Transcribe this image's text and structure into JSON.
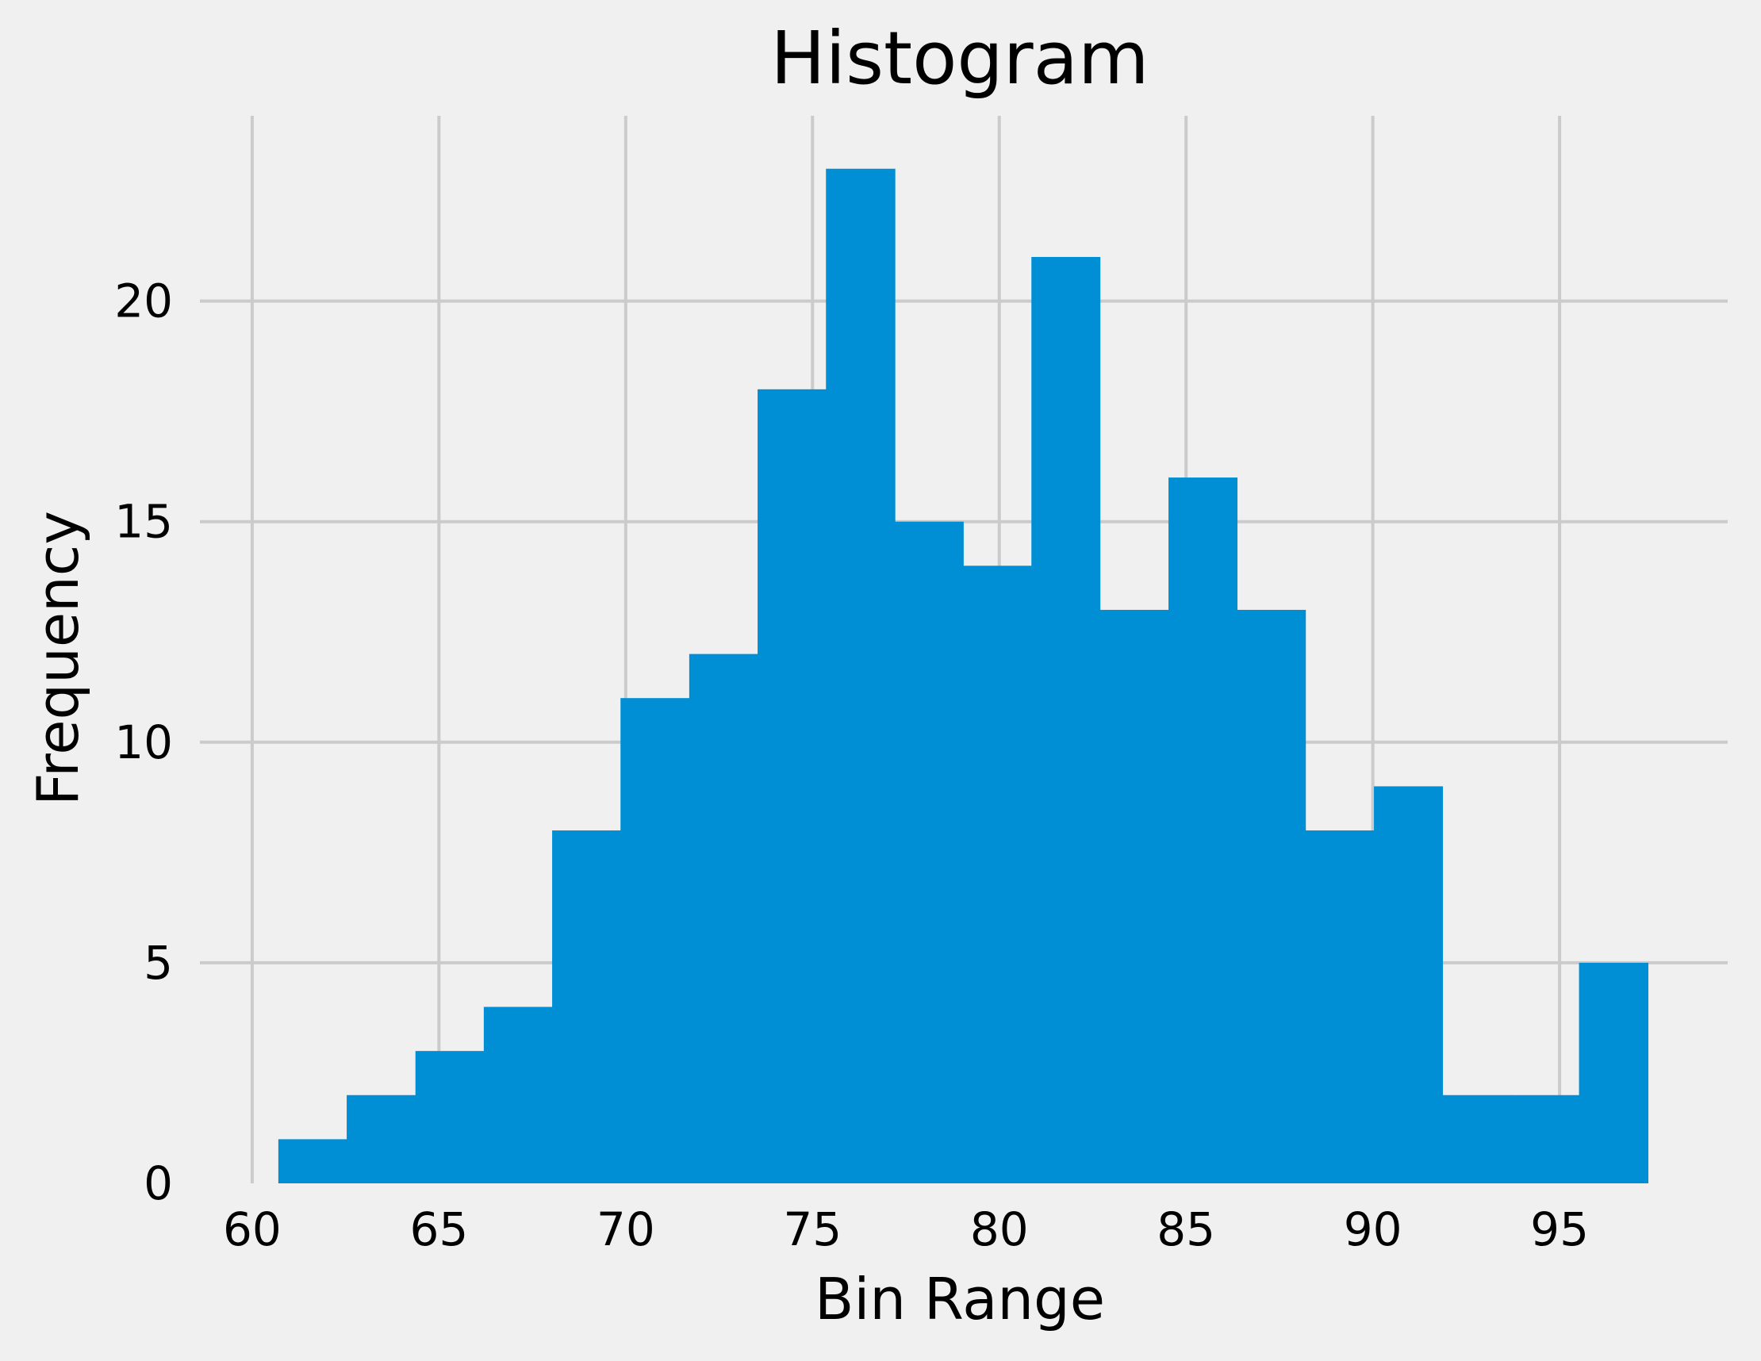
{
  "colors": {
    "background": "#f0f0f0",
    "bar": "#008fd5",
    "grid": "#cbcbcb",
    "text": "#000000"
  },
  "chart_data": {
    "type": "histogram",
    "title": "Histogram",
    "xlabel": "Bin Range",
    "ylabel": "Frequency",
    "xlim": [
      58.6,
      99.5
    ],
    "ylim": [
      0,
      24.2
    ],
    "grid": true,
    "x_ticks": [
      60,
      65,
      70,
      75,
      80,
      85,
      90,
      95
    ],
    "x_tick_labels": [
      "60",
      "65",
      "70",
      "75",
      "80",
      "85",
      "90",
      "95"
    ],
    "y_ticks": [
      0,
      5,
      10,
      15,
      20
    ],
    "y_tick_labels": [
      "0",
      "5",
      "10",
      "15",
      "20"
    ],
    "bin_edges": [
      60.7,
      62.53,
      64.37,
      66.2,
      68.03,
      69.86,
      71.7,
      73.53,
      75.36,
      77.2,
      79.03,
      80.86,
      82.69,
      84.53,
      86.36,
      88.19,
      90.03,
      91.86,
      93.69,
      95.52,
      97.36
    ],
    "values": [
      1,
      2,
      3,
      4,
      8,
      11,
      12,
      18,
      23,
      15,
      14,
      21,
      13,
      16,
      13,
      8,
      9,
      2,
      2,
      5
    ]
  }
}
